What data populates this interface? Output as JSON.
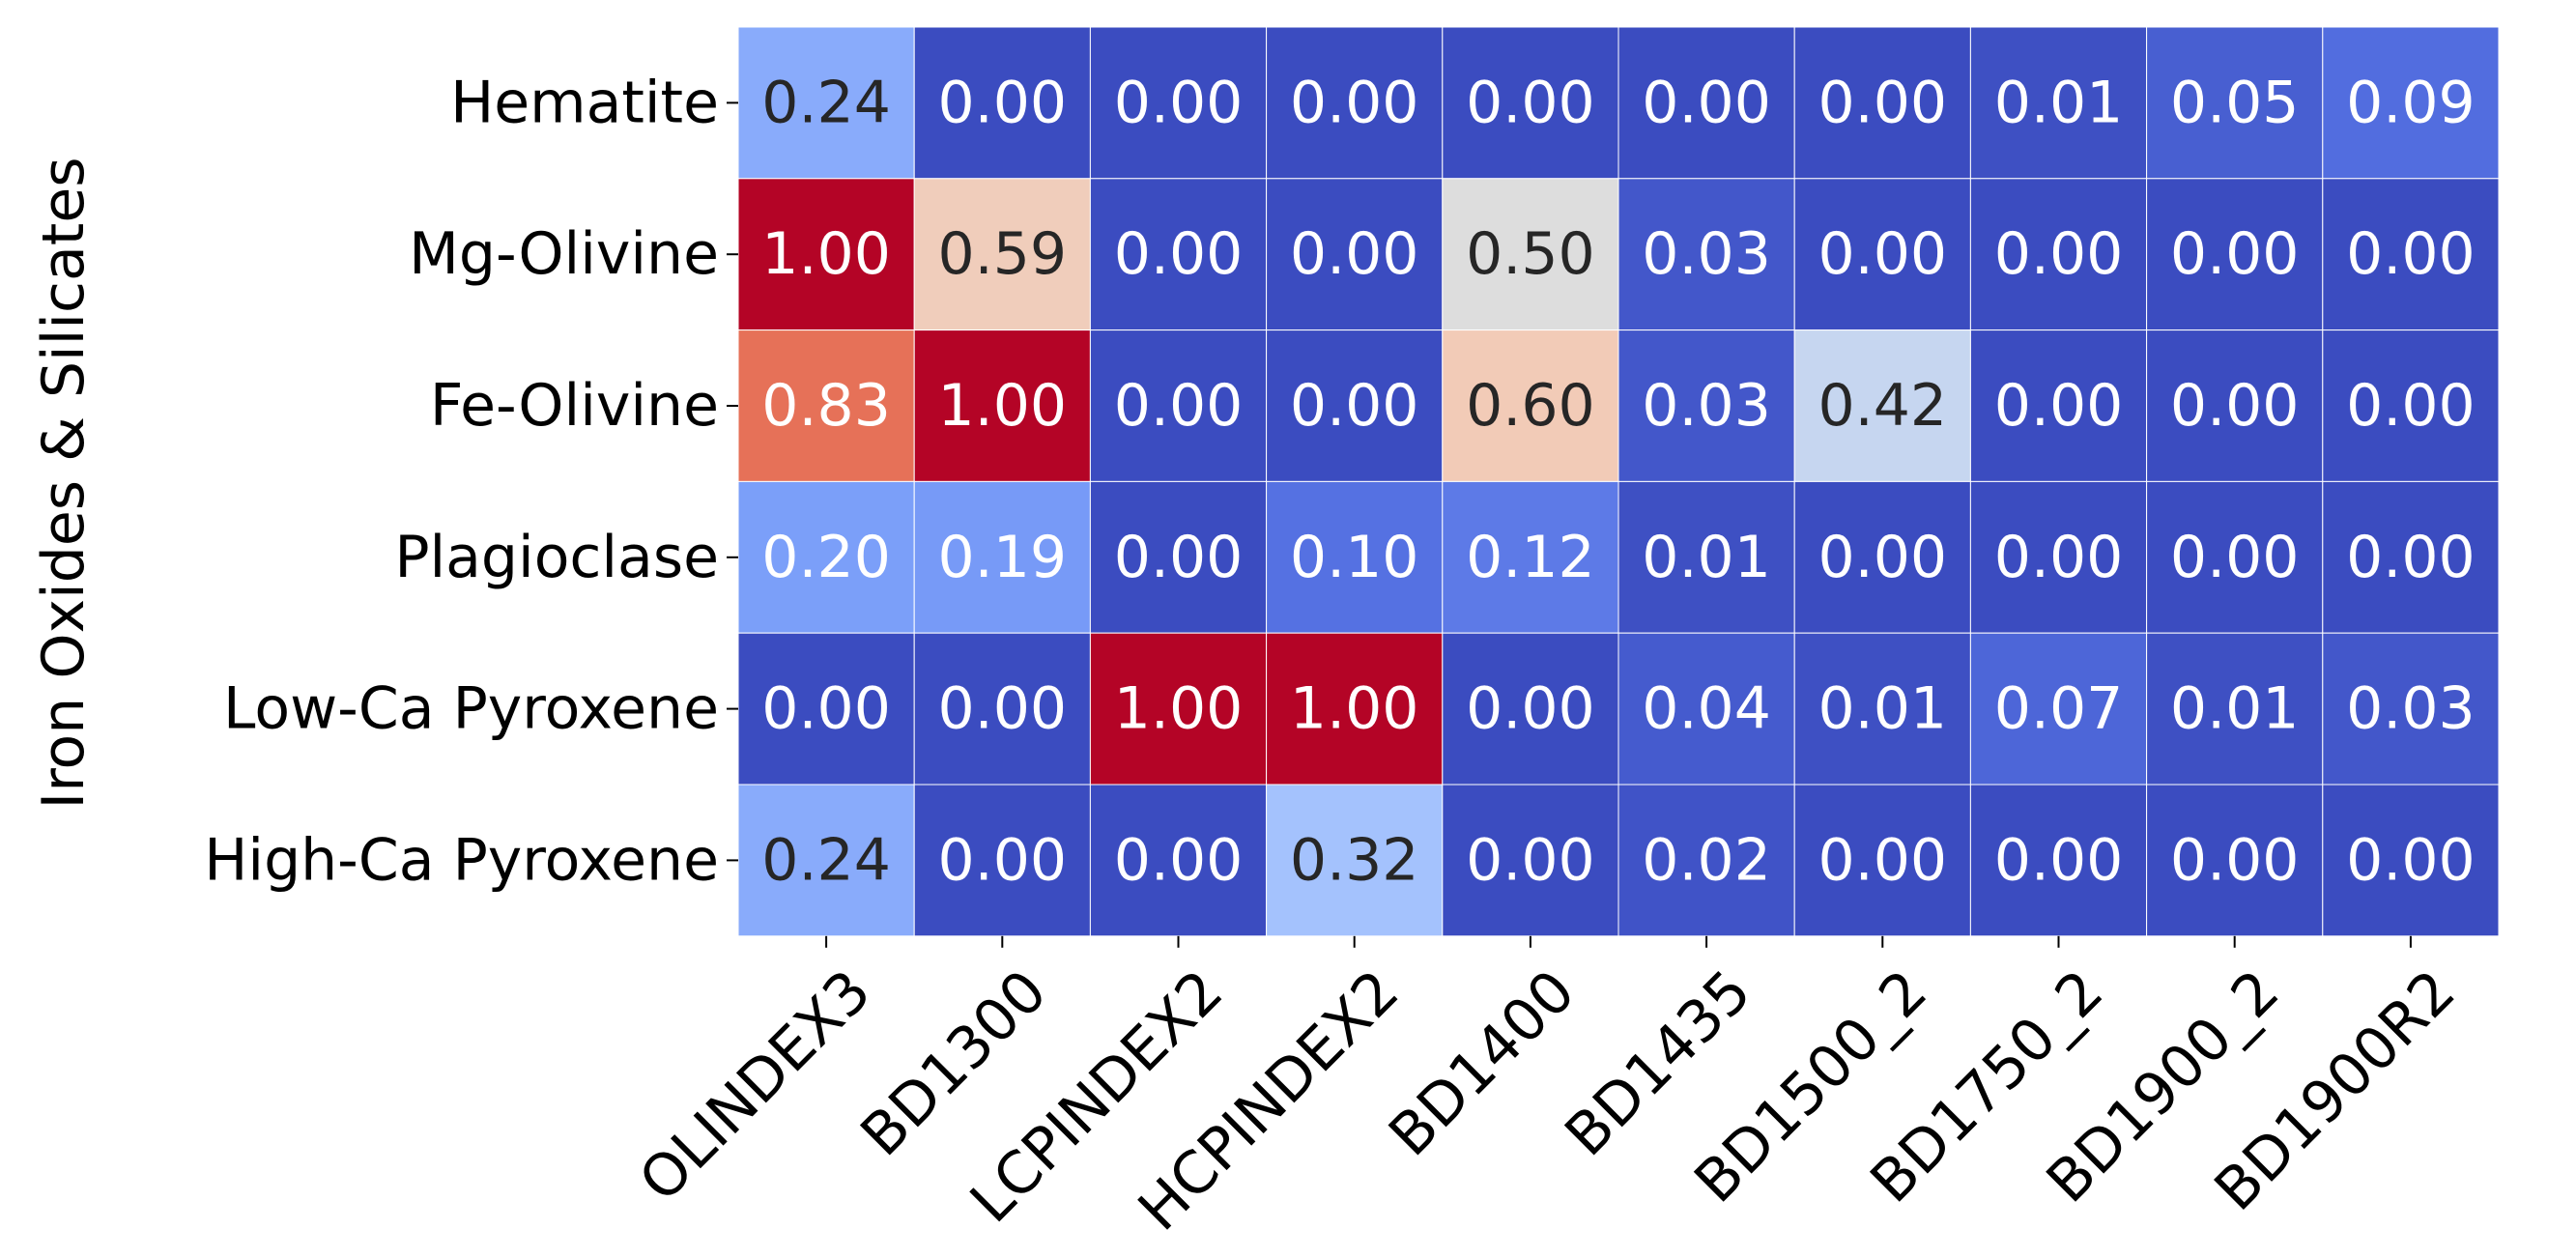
{
  "chart_data": {
    "type": "heatmap",
    "title": "",
    "xlabel": "",
    "ylabel": "Iron Oxides & Silicates",
    "x_categories": [
      "OLINDEX3",
      "BD1300",
      "LCPINDEX2",
      "HCPINDEX2",
      "BD1400",
      "BD1435",
      "BD1500_2",
      "BD1750_2",
      "BD1900_2",
      "BD1900R2"
    ],
    "y_categories": [
      "Hematite",
      "Mg-Olivine",
      "Fe-Olivine",
      "Plagioclase",
      "Low-Ca Pyroxene",
      "High-Ca Pyroxene"
    ],
    "values": [
      [
        0.24,
        0.0,
        0.0,
        0.0,
        0.0,
        0.0,
        0.0,
        0.01,
        0.05,
        0.09
      ],
      [
        1.0,
        0.59,
        0.0,
        0.0,
        0.5,
        0.03,
        0.0,
        0.0,
        0.0,
        0.0
      ],
      [
        0.83,
        1.0,
        0.0,
        0.0,
        0.6,
        0.03,
        0.42,
        0.0,
        0.0,
        0.0
      ],
      [
        0.2,
        0.19,
        0.0,
        0.1,
        0.12,
        0.01,
        0.0,
        0.0,
        0.0,
        0.0
      ],
      [
        0.0,
        0.0,
        1.0,
        1.0,
        0.0,
        0.04,
        0.01,
        0.07,
        0.01,
        0.03
      ],
      [
        0.24,
        0.0,
        0.0,
        0.32,
        0.0,
        0.02,
        0.0,
        0.0,
        0.0,
        0.0
      ]
    ],
    "value_format": "0.00",
    "colormap": "coolwarm",
    "value_range": [
      0,
      1
    ],
    "grid": true,
    "gridline_color": "#ffffff",
    "colorbar": false,
    "legend": "none"
  }
}
